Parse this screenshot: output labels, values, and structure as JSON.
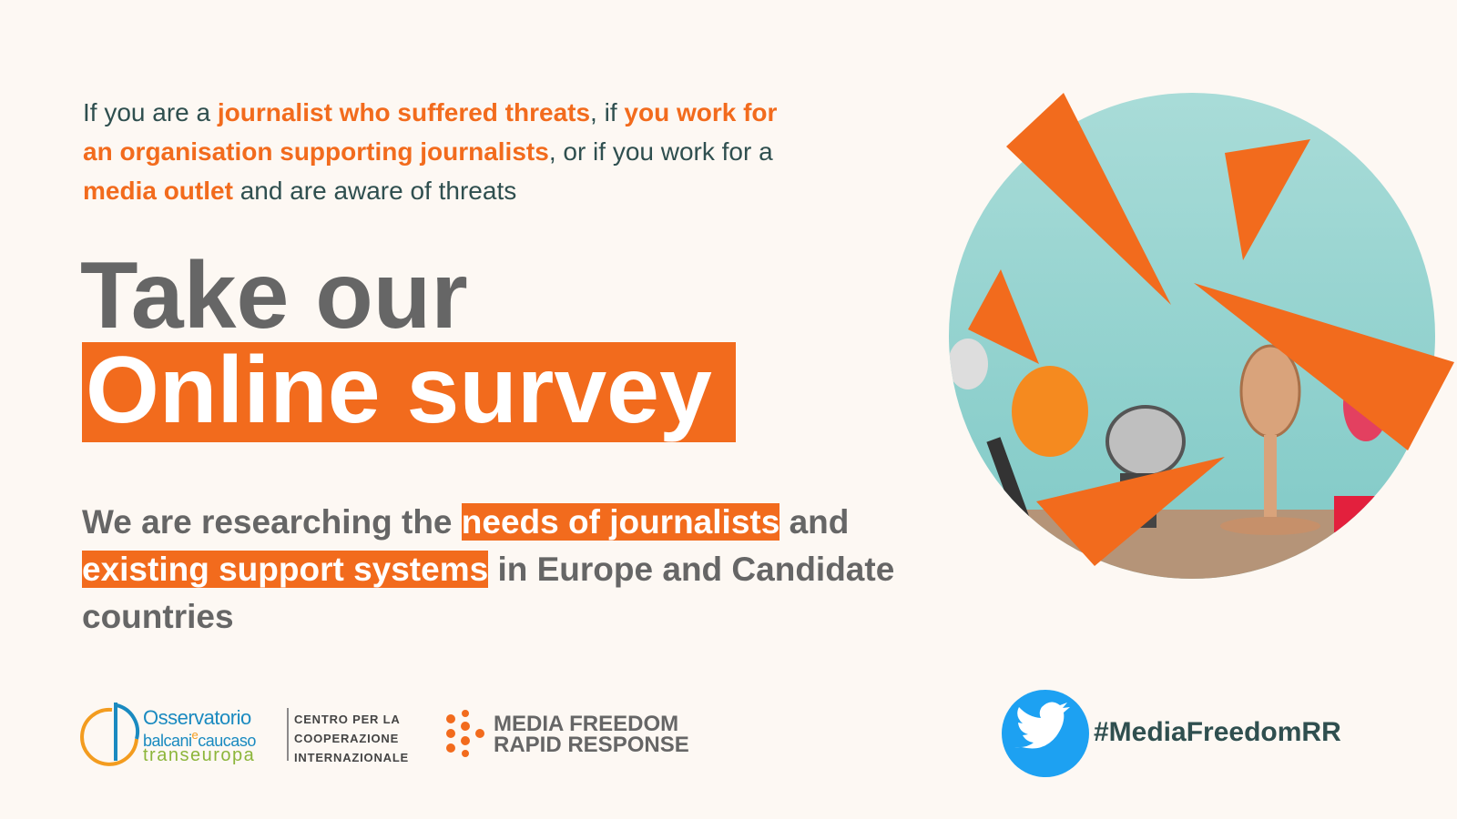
{
  "intro": {
    "lines": [
      [
        {
          "text": "If you are a ",
          "emphasis": false
        },
        {
          "text": "journalist who suffered threats",
          "emphasis": true
        },
        {
          "text": ", if ",
          "emphasis": false
        },
        {
          "text": "you work for",
          "emphasis": true
        }
      ],
      [
        {
          "text": "an organisation supporting journalists",
          "emphasis": true
        },
        {
          "text": ", or if you work for a",
          "emphasis": false
        }
      ],
      [
        {
          "text": "media outlet",
          "emphasis": true
        },
        {
          "text": " and are aware of threats",
          "emphasis": false
        }
      ]
    ]
  },
  "headline": {
    "line1": "Take our",
    "line2": "Online survey"
  },
  "body": {
    "lines": [
      [
        {
          "text": "We are researching the ",
          "emphasis": false
        },
        {
          "text": "needs of journalists",
          "emphasis": true
        },
        {
          "text": " and",
          "emphasis": false
        }
      ],
      [
        {
          "text": "existing support systems",
          "emphasis": true
        },
        {
          "text": " in Europe and Candidate",
          "emphasis": false
        }
      ],
      [
        {
          "text": "countries",
          "emphasis": false
        }
      ]
    ]
  },
  "footer": {
    "obc": {
      "name": "Osservatorio",
      "line2a": "balcani",
      "line2b": "e",
      "line2c": "caucaso",
      "line3": "transeuropa"
    },
    "cci": [
      "CENTRO PER LA",
      "COOPERAZIONE",
      "INTERNAZIONALE"
    ],
    "mfrr": [
      "MEDIA FREEDOM",
      "RAPID RESPONSE"
    ],
    "hashtag": "#MediaFreedomRR"
  }
}
